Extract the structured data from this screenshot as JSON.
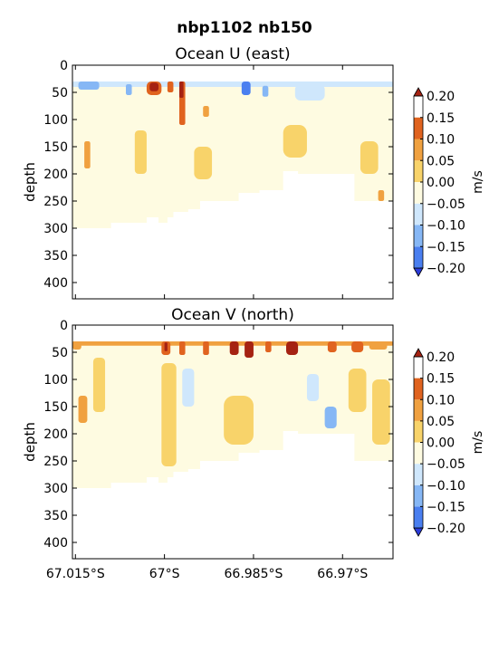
{
  "figure": {
    "suptitle": "nbp1102 nb150"
  },
  "chart_data": [
    {
      "type": "heatmap",
      "title": "Ocean U (east)",
      "ylabel": "depth",
      "ylim": [
        430,
        0
      ],
      "y_ticks": [
        0,
        50,
        100,
        150,
        200,
        250,
        300,
        350,
        400
      ],
      "xlim": [
        -67.0155,
        -66.9615
      ],
      "x_ticks": [
        -67.015,
        -67.0,
        -66.985,
        -66.97
      ],
      "x_tick_labels": [
        "67.015°S",
        "67°S",
        "66.985°S",
        "66.97°S"
      ],
      "show_x_tick_labels": false,
      "colorbar": {
        "label": "m/s",
        "levels": [
          -0.2,
          -0.15,
          -0.1,
          -0.05,
          0.0,
          0.05,
          0.1,
          0.15,
          0.2
        ],
        "tick_labels": [
          "−0.20",
          "−0.15",
          "−0.10",
          "−0.05",
          "0.00",
          "0.05",
          "0.10",
          "0.15",
          "0.20"
        ],
        "colors": [
          "#2b3bd9",
          "#4a7ff0",
          "#86b7f5",
          "#cfe7fc",
          "#fefbe1",
          "#f8d36a",
          "#f0a140",
          "#e0631f",
          "#a52212"
        ],
        "extend": "both"
      },
      "data": {
        "depth_top": 30,
        "depth_bottom": 310,
        "profile_max_depth": [
          [
            -67.0155,
            300
          ],
          [
            -67.011,
            300
          ],
          [
            -67.009,
            290
          ],
          [
            -67.006,
            290
          ],
          [
            -67.003,
            280
          ],
          [
            -67.001,
            290
          ],
          [
            -66.9995,
            280
          ],
          [
            -66.9985,
            270
          ],
          [
            -66.996,
            265
          ],
          [
            -66.994,
            250
          ],
          [
            -66.99,
            250
          ],
          [
            -66.9875,
            235
          ],
          [
            -66.984,
            230
          ],
          [
            -66.982,
            230
          ],
          [
            -66.98,
            195
          ],
          [
            -66.9775,
            200
          ],
          [
            -66.97,
            200
          ],
          [
            -66.968,
            250
          ],
          [
            -66.964,
            250
          ],
          [
            -66.9615,
            230
          ]
        ],
        "bands": [
          {
            "x": [
              -67.0155,
              -66.9615
            ],
            "depth": [
              30,
              40
            ],
            "value": -0.06
          },
          {
            "x": [
              -67.0145,
              -67.011
            ],
            "depth": [
              30,
              45
            ],
            "value": -0.12
          },
          {
            "x": [
              -67.0065,
              -67.0055
            ],
            "depth": [
              35,
              55
            ],
            "value": -0.13
          },
          {
            "x": [
              -67.003,
              -67.0005
            ],
            "depth": [
              30,
              55
            ],
            "value": 0.12
          },
          {
            "x": [
              -67.0025,
              -67.001
            ],
            "depth": [
              32,
              48
            ],
            "value": 0.18
          },
          {
            "x": [
              -66.9995,
              -66.9985
            ],
            "depth": [
              30,
              50
            ],
            "value": 0.1
          },
          {
            "x": [
              -66.9975,
              -66.9965
            ],
            "depth": [
              30,
              110
            ],
            "value": 0.1
          },
          {
            "x": [
              -66.9975,
              -66.9968
            ],
            "depth": [
              30,
              60
            ],
            "value": 0.16
          },
          {
            "x": [
              -66.9935,
              -66.9925
            ],
            "depth": [
              75,
              95
            ],
            "value": 0.08
          },
          {
            "x": [
              -66.987,
              -66.9855
            ],
            "depth": [
              30,
              55
            ],
            "value": -0.18
          },
          {
            "x": [
              -66.9835,
              -66.9825
            ],
            "depth": [
              38,
              58
            ],
            "value": -0.12
          },
          {
            "x": [
              -66.978,
              -66.973
            ],
            "depth": [
              35,
              65
            ],
            "value": -0.08
          },
          {
            "x": [
              -67.0135,
              -67.0125
            ],
            "depth": [
              140,
              190
            ],
            "value": 0.06
          },
          {
            "x": [
              -67.005,
              -67.003
            ],
            "depth": [
              120,
              200
            ],
            "value": 0.03
          },
          {
            "x": [
              -66.995,
              -66.992
            ],
            "depth": [
              150,
              210
            ],
            "value": 0.03
          },
          {
            "x": [
              -66.98,
              -66.976
            ],
            "depth": [
              110,
              170
            ],
            "value": 0.03
          },
          {
            "x": [
              -66.967,
              -66.964
            ],
            "depth": [
              140,
              200
            ],
            "value": 0.03
          },
          {
            "x": [
              -66.964,
              -66.963
            ],
            "depth": [
              230,
              250
            ],
            "value": 0.07
          }
        ]
      }
    },
    {
      "type": "heatmap",
      "title": "Ocean V (north)",
      "ylabel": "depth",
      "ylim": [
        430,
        0
      ],
      "y_ticks": [
        0,
        50,
        100,
        150,
        200,
        250,
        300,
        350,
        400
      ],
      "xlim": [
        -67.0155,
        -66.9615
      ],
      "x_ticks": [
        -67.015,
        -67.0,
        -66.985,
        -66.97
      ],
      "x_tick_labels": [
        "67.015°S",
        "67°S",
        "66.985°S",
        "66.97°S"
      ],
      "show_x_tick_labels": true,
      "colorbar": {
        "label": "m/s",
        "levels": [
          -0.2,
          -0.15,
          -0.1,
          -0.05,
          0.0,
          0.05,
          0.1,
          0.15,
          0.2
        ],
        "tick_labels": [
          "−0.20",
          "−0.15",
          "−0.10",
          "−0.05",
          "0.00",
          "0.05",
          "0.10",
          "0.15",
          "0.20"
        ],
        "colors": [
          "#2b3bd9",
          "#4a7ff0",
          "#86b7f5",
          "#cfe7fc",
          "#fefbe1",
          "#f8d36a",
          "#f0a140",
          "#e0631f",
          "#a52212"
        ],
        "extend": "both"
      },
      "data": {
        "depth_top": 30,
        "depth_bottom": 310,
        "profile_max_depth": [
          [
            -67.0155,
            300
          ],
          [
            -67.011,
            300
          ],
          [
            -67.009,
            290
          ],
          [
            -67.006,
            290
          ],
          [
            -67.003,
            280
          ],
          [
            -67.001,
            290
          ],
          [
            -66.9995,
            280
          ],
          [
            -66.9985,
            270
          ],
          [
            -66.996,
            265
          ],
          [
            -66.994,
            250
          ],
          [
            -66.99,
            250
          ],
          [
            -66.9875,
            235
          ],
          [
            -66.984,
            230
          ],
          [
            -66.982,
            230
          ],
          [
            -66.98,
            195
          ],
          [
            -66.9775,
            200
          ],
          [
            -66.97,
            200
          ],
          [
            -66.968,
            250
          ],
          [
            -66.964,
            250
          ],
          [
            -66.9615,
            230
          ]
        ],
        "bands": [
          {
            "x": [
              -67.0155,
              -66.9615
            ],
            "depth": [
              30,
              38
            ],
            "value": 0.06
          },
          {
            "x": [
              -67.0155,
              -67.014
            ],
            "depth": [
              30,
              45
            ],
            "value": 0.08
          },
          {
            "x": [
              -67.0005,
              -66.999
            ],
            "depth": [
              30,
              55
            ],
            "value": 0.12
          },
          {
            "x": [
              -67.0,
              -66.9995
            ],
            "depth": [
              32,
              48
            ],
            "value": 0.16
          },
          {
            "x": [
              -66.9975,
              -66.9965
            ],
            "depth": [
              30,
              55
            ],
            "value": 0.1
          },
          {
            "x": [
              -66.9935,
              -66.9925
            ],
            "depth": [
              30,
              55
            ],
            "value": 0.14
          },
          {
            "x": [
              -66.989,
              -66.9875
            ],
            "depth": [
              30,
              55
            ],
            "value": 0.15
          },
          {
            "x": [
              -66.9865,
              -66.985
            ],
            "depth": [
              30,
              60
            ],
            "value": 0.16
          },
          {
            "x": [
              -66.983,
              -66.982
            ],
            "depth": [
              30,
              50
            ],
            "value": 0.12
          },
          {
            "x": [
              -66.9795,
              -66.9775
            ],
            "depth": [
              30,
              55
            ],
            "value": 0.15
          },
          {
            "x": [
              -66.9725,
              -66.971
            ],
            "depth": [
              30,
              50
            ],
            "value": 0.12
          },
          {
            "x": [
              -66.9685,
              -66.9665
            ],
            "depth": [
              30,
              50
            ],
            "value": 0.11
          },
          {
            "x": [
              -66.9655,
              -66.9625
            ],
            "depth": [
              30,
              45
            ],
            "value": 0.08
          },
          {
            "x": [
              -67.0145,
              -67.013
            ],
            "depth": [
              130,
              180
            ],
            "value": 0.07
          },
          {
            "x": [
              -67.012,
              -67.01
            ],
            "depth": [
              60,
              160
            ],
            "value": 0.03
          },
          {
            "x": [
              -67.0005,
              -66.998
            ],
            "depth": [
              70,
              260
            ],
            "value": 0.03
          },
          {
            "x": [
              -66.997,
              -66.995
            ],
            "depth": [
              80,
              150
            ],
            "value": -0.06
          },
          {
            "x": [
              -66.99,
              -66.985
            ],
            "depth": [
              130,
              220
            ],
            "value": 0.03
          },
          {
            "x": [
              -66.976,
              -66.974
            ],
            "depth": [
              90,
              140
            ],
            "value": -0.08
          },
          {
            "x": [
              -66.973,
              -66.971
            ],
            "depth": [
              150,
              190
            ],
            "value": -0.12
          },
          {
            "x": [
              -66.969,
              -66.966
            ],
            "depth": [
              80,
              160
            ],
            "value": 0.03
          },
          {
            "x": [
              -66.965,
              -66.962
            ],
            "depth": [
              100,
              220
            ],
            "value": 0.03
          }
        ]
      }
    }
  ]
}
